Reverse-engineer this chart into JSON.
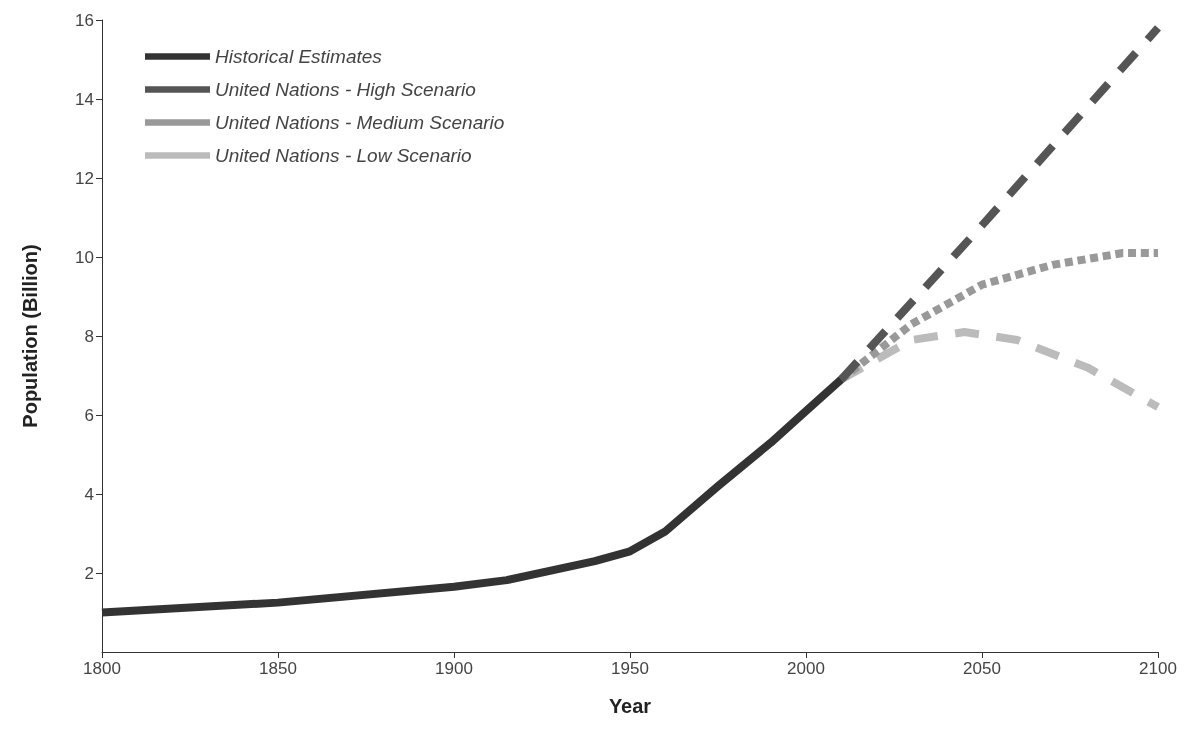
{
  "chart_data": {
    "type": "line",
    "xlabel": "Year",
    "ylabel": "Population (Billion)",
    "xlim": [
      1800,
      2100
    ],
    "xticks": [
      1800,
      1850,
      1900,
      1950,
      2000,
      2050,
      2100
    ],
    "ylim": [
      0,
      16
    ],
    "yticks": [
      2,
      4,
      6,
      8,
      10,
      12,
      14,
      16
    ],
    "grid": false,
    "legend": "top left",
    "marker": "none",
    "series": [
      {
        "name": "Historical Estimates",
        "color": "#333333",
        "line_style": "solid",
        "x": [
          1800,
          1850,
          1900,
          1915,
          1940,
          1950,
          1960,
          1975,
          1990,
          2000,
          2010
        ],
        "values": [
          1.0,
          1.25,
          1.65,
          1.82,
          2.3,
          2.55,
          3.05,
          4.2,
          5.3,
          6.1,
          6.9
        ]
      },
      {
        "name": "United Nations - High Scenario",
        "color": "#555555",
        "line_style": "dashed",
        "x": [
          2010,
          2050,
          2100
        ],
        "values": [
          6.9,
          10.8,
          15.8
        ]
      },
      {
        "name": "United Nations - Medium Scenario",
        "color": "#999999",
        "line_style": "dotted",
        "x": [
          2010,
          2030,
          2050,
          2070,
          2090,
          2100
        ],
        "values": [
          6.9,
          8.3,
          9.3,
          9.8,
          10.1,
          10.1
        ]
      },
      {
        "name": "United Nations - Low Scenario",
        "color": "#bbbbbb",
        "line_style": "dashed",
        "x": [
          2010,
          2030,
          2045,
          2060,
          2080,
          2100
        ],
        "values": [
          6.9,
          7.9,
          8.1,
          7.9,
          7.2,
          6.2
        ]
      }
    ]
  }
}
